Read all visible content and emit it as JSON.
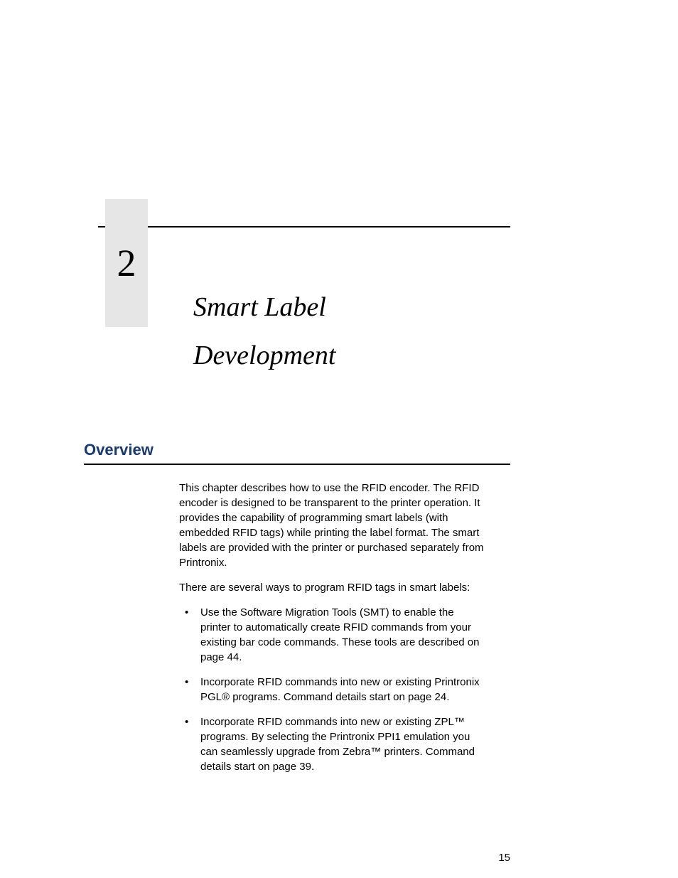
{
  "chapter": {
    "number": "2",
    "title_line1": "Smart Label",
    "title_line2": "Development"
  },
  "section": {
    "heading": "Overview"
  },
  "body": {
    "para1": "This chapter describes how to use the RFID encoder. The RFID encoder is designed to be transparent to the printer operation. It provides the capability of programming smart labels (with embedded RFID tags) while printing the label format. The smart labels are provided with the printer or purchased separately from Printronix.",
    "para2": "There are several ways to program RFID tags in smart labels:",
    "bullets": [
      "Use the Software Migration Tools (SMT) to enable the printer to automatically create RFID commands from your existing bar code commands. These tools are described on page 44.",
      "Incorporate RFID commands into new or existing Printronix PGL® programs. Command details start on page 24.",
      "Incorporate RFID commands into new or existing ZPL™ programs. By selecting the Printronix PPI1 emulation you can seamlessly upgrade from Zebra™ printers. Command details start on page 39."
    ]
  },
  "page_number": "15",
  "colors": {
    "heading_color": "#1a3a6e",
    "chapter_box_bg": "#e6e6e6",
    "rule_color": "#000000",
    "text_color": "#000000",
    "background": "#ffffff"
  },
  "typography": {
    "chapter_number_fontsize": 54,
    "chapter_title_fontsize": 38,
    "section_heading_fontsize": 22,
    "body_fontsize": 15,
    "chapter_font": "Times New Roman",
    "body_font": "Arial"
  }
}
